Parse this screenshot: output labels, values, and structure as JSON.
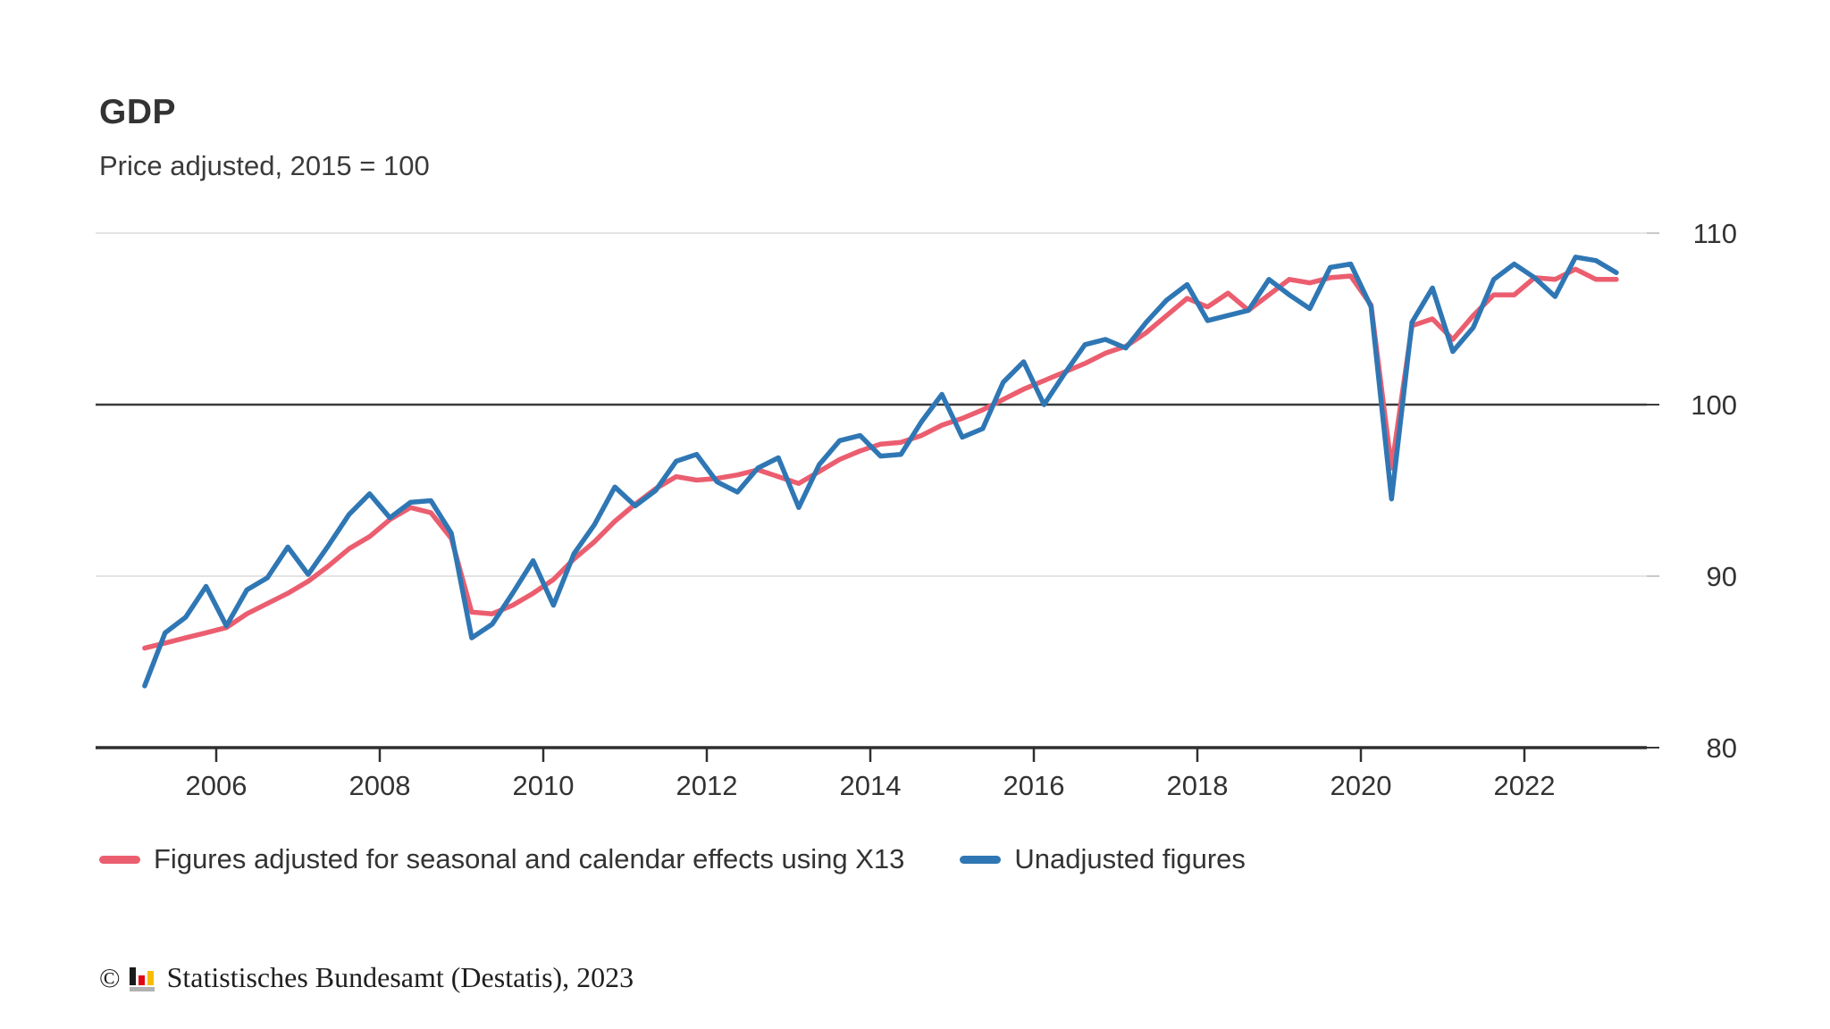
{
  "header": {
    "title": "GDP",
    "subtitle": "Price adjusted, 2015 = 100"
  },
  "footer": {
    "copyright": "©",
    "source": "Statistisches Bundesamt (Destatis), 2023",
    "logo_colors": {
      "black": "#1a1a1a",
      "red": "#e30613",
      "gold": "#f6bd00",
      "base_gray": "#b2b2b2"
    }
  },
  "colors": {
    "adjusted_line": "#eb5e6f",
    "unadjusted_line": "#2f77b4",
    "grid_light": "#dcdcdc",
    "baseline_dark": "#3a3a3a",
    "axis": "#2f2f2f",
    "text": "#333333"
  },
  "chart_data": {
    "type": "line",
    "title": "GDP",
    "subtitle": "Price adjusted, 2015 = 100",
    "x_start_year": 2005,
    "x_start_quarter": 1,
    "points_per_year": 4,
    "x_ticks": [
      2006,
      2008,
      2010,
      2012,
      2014,
      2016,
      2018,
      2020,
      2022
    ],
    "y_ticks": [
      80,
      90,
      100,
      110
    ],
    "ylim": [
      80,
      110
    ],
    "baseline": 100,
    "grid": "horizontal",
    "legend_position": "bottom",
    "series": [
      {
        "name": "Figures adjusted for seasonal and calendar effects using X13",
        "color": "#eb5e6f",
        "values": [
          85.8,
          86.1,
          86.4,
          86.7,
          87.0,
          87.8,
          88.4,
          89.0,
          89.7,
          90.6,
          91.6,
          92.3,
          93.3,
          94.0,
          93.7,
          92.2,
          87.9,
          87.8,
          88.3,
          89.0,
          89.8,
          91.0,
          92.0,
          93.2,
          94.2,
          95.1,
          95.8,
          95.6,
          95.7,
          95.9,
          96.2,
          95.8,
          95.4,
          96.1,
          96.8,
          97.3,
          97.7,
          97.8,
          98.2,
          98.8,
          99.2,
          99.7,
          100.3,
          100.9,
          101.4,
          101.9,
          102.4,
          103.0,
          103.4,
          104.2,
          105.2,
          106.2,
          105.7,
          106.5,
          105.5,
          106.4,
          107.3,
          107.1,
          107.4,
          107.5,
          105.8,
          96.3,
          104.6,
          105.0,
          103.8,
          105.2,
          106.4,
          106.4,
          107.4,
          107.3,
          107.9,
          107.3,
          107.3
        ]
      },
      {
        "name": "Unadjusted figures",
        "color": "#2f77b4",
        "values": [
          83.6,
          86.7,
          87.6,
          89.4,
          87.1,
          89.2,
          89.9,
          91.7,
          90.1,
          91.8,
          93.6,
          94.8,
          93.4,
          94.3,
          94.4,
          92.5,
          86.4,
          87.2,
          89.0,
          90.9,
          88.3,
          91.3,
          93.0,
          95.2,
          94.1,
          95.0,
          96.7,
          97.1,
          95.5,
          94.9,
          96.3,
          96.9,
          94.0,
          96.5,
          97.9,
          98.2,
          97.0,
          97.1,
          99.0,
          100.6,
          98.1,
          98.6,
          101.3,
          102.5,
          100.0,
          101.8,
          103.5,
          103.8,
          103.3,
          104.8,
          106.1,
          107.0,
          104.9,
          105.2,
          105.5,
          107.3,
          106.4,
          105.6,
          108.0,
          108.2,
          105.7,
          94.5,
          104.8,
          106.8,
          103.1,
          104.5,
          107.3,
          108.2,
          107.4,
          106.3,
          108.6,
          108.4,
          107.7
        ]
      }
    ]
  }
}
